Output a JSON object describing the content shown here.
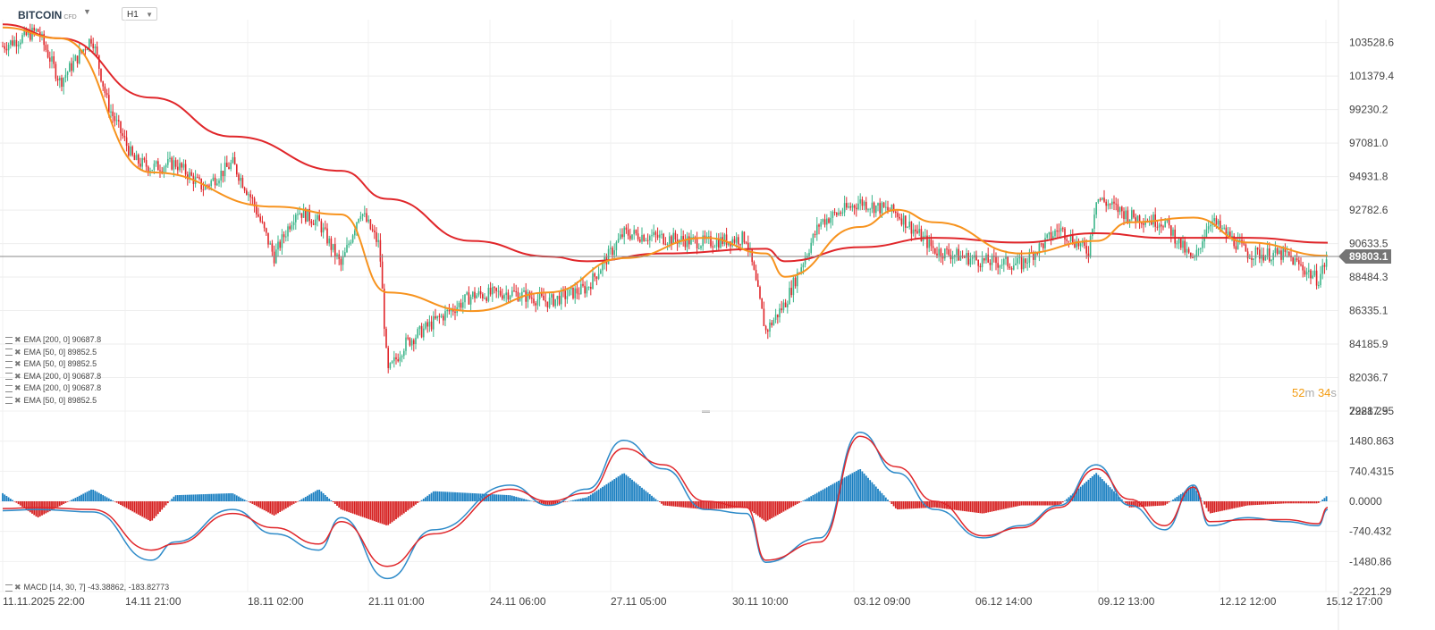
{
  "header": {
    "symbol": "BITCOIN",
    "symbol_tag": "CFD",
    "timeframe": "H1"
  },
  "price_panel": {
    "y_ticks": [
      "103528.6",
      "101379.4",
      "99230.2",
      "97081.0",
      "94931.8",
      "92782.6",
      "90633.5",
      "88484.3",
      "86335.1",
      "84185.9",
      "82036.7",
      "79887.5"
    ],
    "last_price": "89803.1",
    "timer": {
      "minutes": "52",
      "m": "m",
      "seconds": "34",
      "s": "s"
    }
  },
  "indicator_legends": [
    "EMA [200, 0] 90687.8",
    "EMA [50, 0] 89852.5",
    "EMA [50, 0] 89852.5",
    "EMA [200, 0] 90687.8",
    "EMA [200, 0] 90687.8",
    "EMA [50, 0] 89852.5"
  ],
  "macd_panel": {
    "legend": "MACD [14, 30, 7] -43.38862, -183.82773",
    "y_ticks": [
      "2221.295",
      "1480.863",
      "740.4315",
      "0.0000",
      "-740.432",
      "-1480.86",
      "-2221.29"
    ]
  },
  "x_ticks": [
    "11.11.2025  22:00",
    "14.11  21:00",
    "18.11  02:00",
    "21.11  01:00",
    "24.11  06:00",
    "27.11  05:00",
    "30.11  10:00",
    "03.12  09:00",
    "06.12  14:00",
    "09.12  13:00",
    "12.12  12:00",
    "15.12  17:00"
  ],
  "colors": {
    "ema50": "#f7931e",
    "ema200": "#e0262a",
    "up": "#3bb58a",
    "down": "#e0262a",
    "macd_line": "#2e8bc9",
    "signal_line": "#e0262a",
    "hist_pos": "#1a7fc1",
    "hist_neg": "#d61e1e"
  },
  "chart_data": [
    {
      "type": "candlestick",
      "instrument": "BITCOIN",
      "timeframe": "H1",
      "ylim": [
        79887.5,
        105000
      ],
      "last_price": 89803.1,
      "close_path": {
        "x": [
          "11.11 00:00",
          "11.11 22:00",
          "12.11 12:00",
          "13.11 08:00",
          "13.11 18:00",
          "14.11 10:00",
          "14.11 21:00",
          "15.11 12:00",
          "16.11 06:00",
          "17.11 00:00",
          "17.11 12:00",
          "18.11 02:00",
          "18.11 16:00",
          "19.11 06:00",
          "19.11 20:00",
          "20.11 08:00",
          "20.11 20:00",
          "21.11 01:00",
          "21.11 12:00",
          "22.11 06:00",
          "23.11 06:00",
          "24.11 06:00",
          "25.11 06:00",
          "26.11 06:00",
          "27.11 05:00",
          "28.11 06:00",
          "29.11 08:00",
          "30.11 10:00",
          "30.11 22:00",
          "01.12 10:00",
          "02.12 08:00",
          "03.12 09:00",
          "04.12 08:00",
          "05.12 08:00",
          "06.12 14:00",
          "07.12 14:00",
          "08.12 14:00",
          "09.12 08:00",
          "09.12 13:00",
          "10.12 10:00",
          "11.12 08:00",
          "12.12 02:00",
          "12.12 12:00",
          "13.12 12:00",
          "14.12 12:00",
          "15.12 08:00",
          "15.12 14:00"
        ],
        "close": [
          103300,
          104300,
          101000,
          103900,
          99500,
          96000,
          95500,
          95800,
          94200,
          95800,
          93500,
          89800,
          92800,
          92000,
          89200,
          92800,
          90500,
          82300,
          84200,
          85600,
          87300,
          87500,
          86900,
          87800,
          91300,
          91000,
          90700,
          91000,
          85000,
          86800,
          92000,
          93300,
          92600,
          90200,
          89500,
          89300,
          91600,
          90100,
          93600,
          92400,
          92000,
          89400,
          92200,
          90000,
          89900,
          88300,
          89800
        ]
      },
      "ema50": {
        "x": [
          "11.11 00:00",
          "12.11 12:00",
          "14.11 21:00",
          "18.11 02:00",
          "19.11 20:00",
          "21.11 01:00",
          "23.11 06:00",
          "25.11 06:00",
          "27.11 05:00",
          "29.11 08:00",
          "30.11 22:00",
          "01.12 10:00",
          "03.12 09:00",
          "04.12 08:00",
          "05.12 08:00",
          "07.12 14:00",
          "09.12 13:00",
          "10.12 10:00",
          "12.12 02:00",
          "13.12 12:00",
          "15.12 14:00"
        ],
        "y": [
          104500,
          103800,
          95200,
          93000,
          92500,
          87500,
          86300,
          87500,
          89700,
          91000,
          90000,
          88500,
          91700,
          92800,
          92000,
          90000,
          90800,
          92000,
          92300,
          90700,
          89850
        ]
      },
      "ema200": {
        "x": [
          "11.11 00:00",
          "12.11 12:00",
          "14.11 21:00",
          "17.11 00:00",
          "19.11 20:00",
          "21.11 01:00",
          "23.11 06:00",
          "25.11 06:00",
          "26.11 06:00",
          "28.11 06:00",
          "30.11 22:00",
          "01.12 10:00",
          "03.12 09:00",
          "05.12 08:00",
          "07.12 14:00",
          "09.12 13:00",
          "11.12 08:00",
          "13.12 12:00",
          "15.12 14:00"
        ],
        "y": [
          104700,
          103800,
          100000,
          97500,
          95300,
          93500,
          90800,
          89800,
          89500,
          90000,
          90300,
          89500,
          90400,
          91000,
          90700,
          91300,
          91000,
          91000,
          90690
        ]
      }
    },
    {
      "type": "line",
      "indicator": "MACD",
      "params": [
        14,
        30,
        7
      ],
      "ylim": [
        -2221.29,
        2221.295
      ],
      "x": [
        "11.11 00:00",
        "11.11 22:00",
        "13.11 08:00",
        "14.11 21:00",
        "15.11 12:00",
        "17.11 00:00",
        "18.11 02:00",
        "19.11 06:00",
        "19.11 20:00",
        "21.11 01:00",
        "22.11 06:00",
        "24.11 06:00",
        "25.11 06:00",
        "26.11 06:00",
        "27.11 05:00",
        "28.11 06:00",
        "29.11 08:00",
        "30.11 10:00",
        "30.11 22:00",
        "02.12 08:00",
        "03.12 09:00",
        "04.12 08:00",
        "05.12 08:00",
        "06.12 14:00",
        "07.12 14:00",
        "08.12 14:00",
        "09.12 13:00",
        "10.12 10:00",
        "11.12 08:00",
        "12.12 02:00",
        "12.12 12:00",
        "13.12 12:00",
        "14.12 12:00",
        "15.12 08:00",
        "15.12 14:00"
      ],
      "series": [
        {
          "name": "MACD",
          "values": [
            -230,
            -200,
            -260,
            -1450,
            -1000,
            -200,
            -800,
            -1200,
            -400,
            -1900,
            -700,
            400,
            -100,
            300,
            1500,
            800,
            -200,
            -300,
            -1500,
            -900,
            1700,
            700,
            -200,
            -900,
            -600,
            -100,
            900,
            -100,
            -700,
            400,
            -600,
            -400,
            -500,
            -600,
            -200
          ]
        },
        {
          "name": "Signal",
          "values": [
            -180,
            -150,
            -200,
            -1200,
            -1050,
            -300,
            -650,
            -1050,
            -500,
            -1600,
            -800,
            300,
            0,
            200,
            1300,
            900,
            0,
            -150,
            -1450,
            -1000,
            1600,
            850,
            0,
            -850,
            -650,
            -150,
            800,
            50,
            -600,
            350,
            -500,
            -450,
            -450,
            -550,
            -150
          ]
        }
      ],
      "histogram": {
        "x": [
          "11.11 00:00",
          "11.11 22:00",
          "13.11 08:00",
          "14.11 21:00",
          "15.11 12:00",
          "17.11 00:00",
          "18.11 02:00",
          "19.11 06:00",
          "19.11 20:00",
          "21.11 01:00",
          "22.11 06:00",
          "24.11 06:00",
          "25.11 06:00",
          "26.11 06:00",
          "27.11 05:00",
          "28.11 06:00",
          "29.11 08:00",
          "30.11 10:00",
          "30.11 22:00",
          "02.12 08:00",
          "03.12 09:00",
          "04.12 08:00",
          "05.12 08:00",
          "06.12 14:00",
          "07.12 14:00",
          "08.12 14:00",
          "09.12 13:00",
          "10.12 10:00",
          "11.12 08:00",
          "12.12 02:00",
          "12.12 12:00",
          "13.12 12:00",
          "14.12 12:00",
          "15.12 08:00",
          "15.12 14:00"
        ],
        "values": [
          200,
          -400,
          300,
          -500,
          150,
          200,
          -350,
          300,
          -200,
          -600,
          250,
          150,
          -100,
          100,
          700,
          -100,
          -200,
          -150,
          -500,
          250,
          800,
          -200,
          -150,
          -300,
          -100,
          -100,
          700,
          -150,
          -100,
          400,
          -300,
          -100,
          -50,
          -50,
          150
        ]
      }
    }
  ]
}
